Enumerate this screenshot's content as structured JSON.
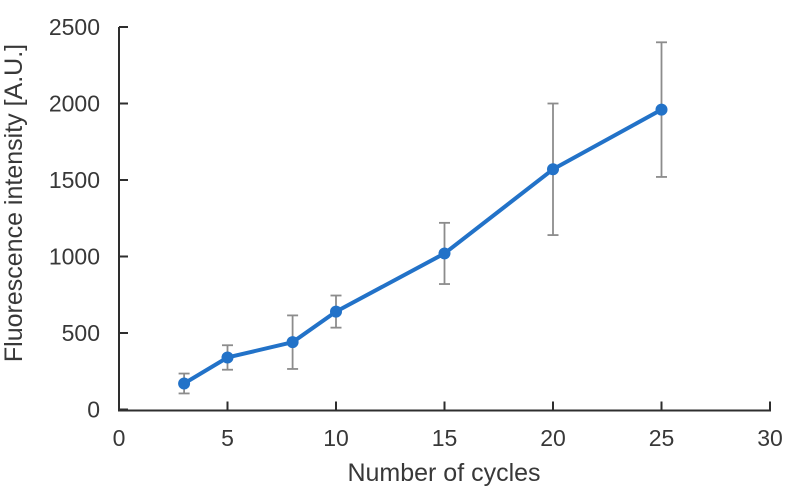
{
  "figure": {
    "background": "#ffffff"
  },
  "chart_data": {
    "type": "line",
    "title": "",
    "xlabel": "Number of cycles",
    "ylabel": "Fluorescence intensity [A.U.]",
    "x": [
      3,
      5,
      8,
      10,
      15,
      20,
      25
    ],
    "series": [
      {
        "name": "Fluorescence intensity",
        "values": [
          170,
          340,
          440,
          640,
          1020,
          1570,
          1960
        ],
        "error_bars": [
          65,
          80,
          175,
          105,
          200,
          430,
          440
        ],
        "color": "#2272C8",
        "marker": "circle",
        "marker_radius": 6,
        "line_width": 4
      }
    ],
    "xlim": [
      0,
      30
    ],
    "ylim": [
      0,
      2500
    ],
    "xticks": [
      0,
      5,
      10,
      15,
      20,
      25,
      30
    ],
    "yticks": [
      0,
      500,
      1000,
      1500,
      2000,
      2500
    ],
    "grid": false,
    "legend": "none",
    "error_bar_color": "#8C8C8C",
    "error_bar_cap_halfwidth": 5.5,
    "axis_color": "#2E2E2E",
    "text_color": "#383838"
  }
}
